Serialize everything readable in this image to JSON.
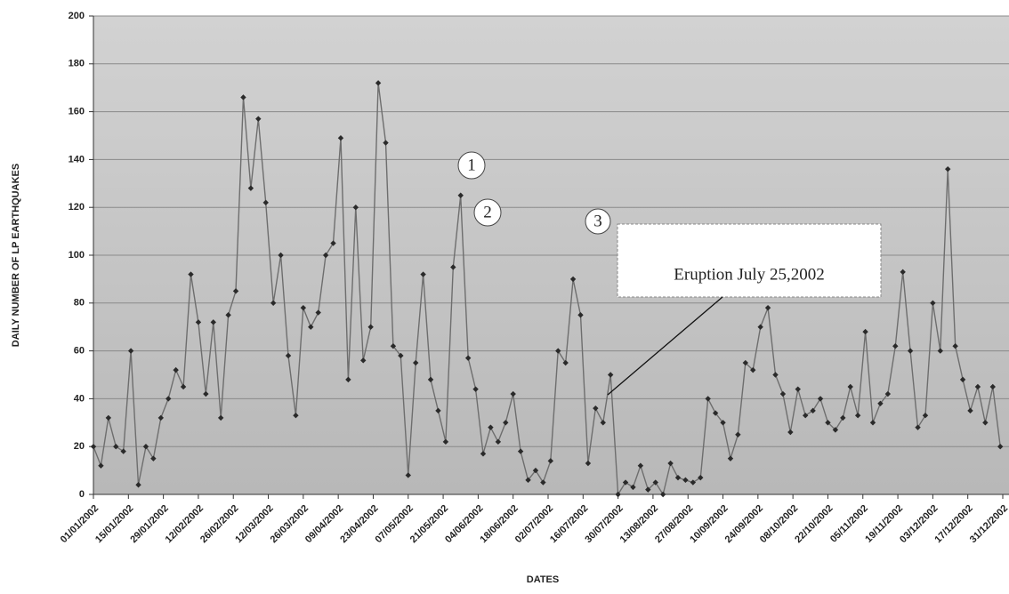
{
  "chart_data": {
    "type": "line",
    "y_label": "DAILY NUMBER OF LP EARTHQUAKES",
    "x_label": "DATES",
    "annotations": [
      "1",
      "2",
      "3",
      "Eruption July 25,2002"
    ],
    "color": "#6e6e6e",
    "marker_color": "#2a2a2a",
    "grid": true,
    "ylim": [
      0,
      200
    ],
    "yticks": [
      0,
      20,
      40,
      60,
      80,
      100,
      120,
      140,
      160,
      180,
      200
    ],
    "xlim": [
      "01/01/2002",
      "31/12/2002"
    ],
    "xticks": [
      "01/01/2002",
      "15/01/2002",
      "29/01/2002",
      "12/02/2002",
      "26/02/2002",
      "12/03/2002",
      "26/03/2002",
      "09/04/2002",
      "23/04/2002",
      "07/05/2002",
      "21/05/2002",
      "04/06/2002",
      "18/06/2002",
      "02/07/2002",
      "16/07/2002",
      "30/07/2002",
      "13/08/2002",
      "27/08/2002",
      "10/09/2002",
      "24/09/2002",
      "08/10/2002",
      "22/10/2002",
      "05/11/2002",
      "19/11/2002",
      "03/12/2002",
      "17/12/2002",
      "31/12/2002"
    ],
    "x": [
      "01/01/2002",
      "04/01/2002",
      "07/01/2002",
      "10/01/2002",
      "13/01/2002",
      "16/01/2002",
      "19/01/2002",
      "22/01/2002",
      "25/01/2002",
      "28/01/2002",
      "31/01/2002",
      "03/02/2002",
      "06/02/2002",
      "09/02/2002",
      "12/02/2002",
      "15/02/2002",
      "18/02/2002",
      "21/02/2002",
      "24/02/2002",
      "27/02/2002",
      "02/03/2002",
      "05/03/2002",
      "08/03/2002",
      "11/03/2002",
      "14/03/2002",
      "17/03/2002",
      "20/03/2002",
      "23/03/2002",
      "26/03/2002",
      "29/03/2002",
      "01/04/2002",
      "04/04/2002",
      "07/04/2002",
      "10/04/2002",
      "13/04/2002",
      "16/04/2002",
      "19/04/2002",
      "22/04/2002",
      "25/04/2002",
      "28/04/2002",
      "01/05/2002",
      "04/05/2002",
      "07/05/2002",
      "10/05/2002",
      "13/05/2002",
      "16/05/2002",
      "19/05/2002",
      "22/05/2002",
      "25/05/2002",
      "28/05/2002",
      "31/05/2002",
      "03/06/2002",
      "06/06/2002",
      "09/06/2002",
      "12/06/2002",
      "15/06/2002",
      "18/06/2002",
      "21/06/2002",
      "24/06/2002",
      "27/06/2002",
      "30/06/2002",
      "03/07/2002",
      "06/07/2002",
      "09/07/2002",
      "12/07/2002",
      "15/07/2002",
      "18/07/2002",
      "21/07/2002",
      "24/07/2002",
      "27/07/2002",
      "30/07/2002",
      "02/08/2002",
      "05/08/2002",
      "08/08/2002",
      "11/08/2002",
      "14/08/2002",
      "17/08/2002",
      "20/08/2002",
      "23/08/2002",
      "26/08/2002",
      "29/08/2002",
      "01/09/2002",
      "04/09/2002",
      "07/09/2002",
      "10/09/2002",
      "13/09/2002",
      "16/09/2002",
      "19/09/2002",
      "22/09/2002",
      "25/09/2002",
      "28/09/2002",
      "01/10/2002",
      "04/10/2002",
      "07/10/2002",
      "10/10/2002",
      "13/10/2002",
      "16/10/2002",
      "19/10/2002",
      "22/10/2002",
      "25/10/2002",
      "28/10/2002",
      "31/10/2002",
      "03/11/2002",
      "06/11/2002",
      "09/11/2002",
      "12/11/2002",
      "15/11/2002",
      "18/11/2002",
      "21/11/2002",
      "24/11/2002",
      "27/11/2002",
      "30/11/2002",
      "03/12/2002",
      "06/12/2002",
      "09/12/2002",
      "12/12/2002",
      "15/12/2002",
      "18/12/2002",
      "21/12/2002",
      "24/12/2002",
      "27/12/2002",
      "30/12/2002"
    ],
    "values": [
      20,
      12,
      32,
      20,
      18,
      60,
      4,
      20,
      15,
      32,
      40,
      52,
      45,
      92,
      72,
      42,
      72,
      32,
      75,
      85,
      166,
      128,
      157,
      122,
      80,
      100,
      58,
      33,
      78,
      70,
      76,
      100,
      105,
      149,
      48,
      120,
      56,
      70,
      172,
      147,
      62,
      58,
      8,
      55,
      92,
      48,
      35,
      22,
      95,
      125,
      57,
      44,
      17,
      28,
      22,
      30,
      42,
      18,
      6,
      10,
      5,
      14,
      60,
      55,
      90,
      75,
      13,
      36,
      30,
      50,
      0,
      5,
      3,
      12,
      2,
      5,
      0,
      13,
      7,
      6,
      5,
      7,
      40,
      34,
      30,
      15,
      25,
      55,
      52,
      70,
      78,
      50,
      42,
      26,
      44,
      33,
      35,
      40,
      30,
      27,
      32,
      45,
      33,
      68,
      30,
      38,
      42,
      62,
      93,
      60,
      28,
      33,
      80,
      60,
      136,
      62,
      48,
      35,
      45,
      30,
      45,
      20
    ]
  }
}
